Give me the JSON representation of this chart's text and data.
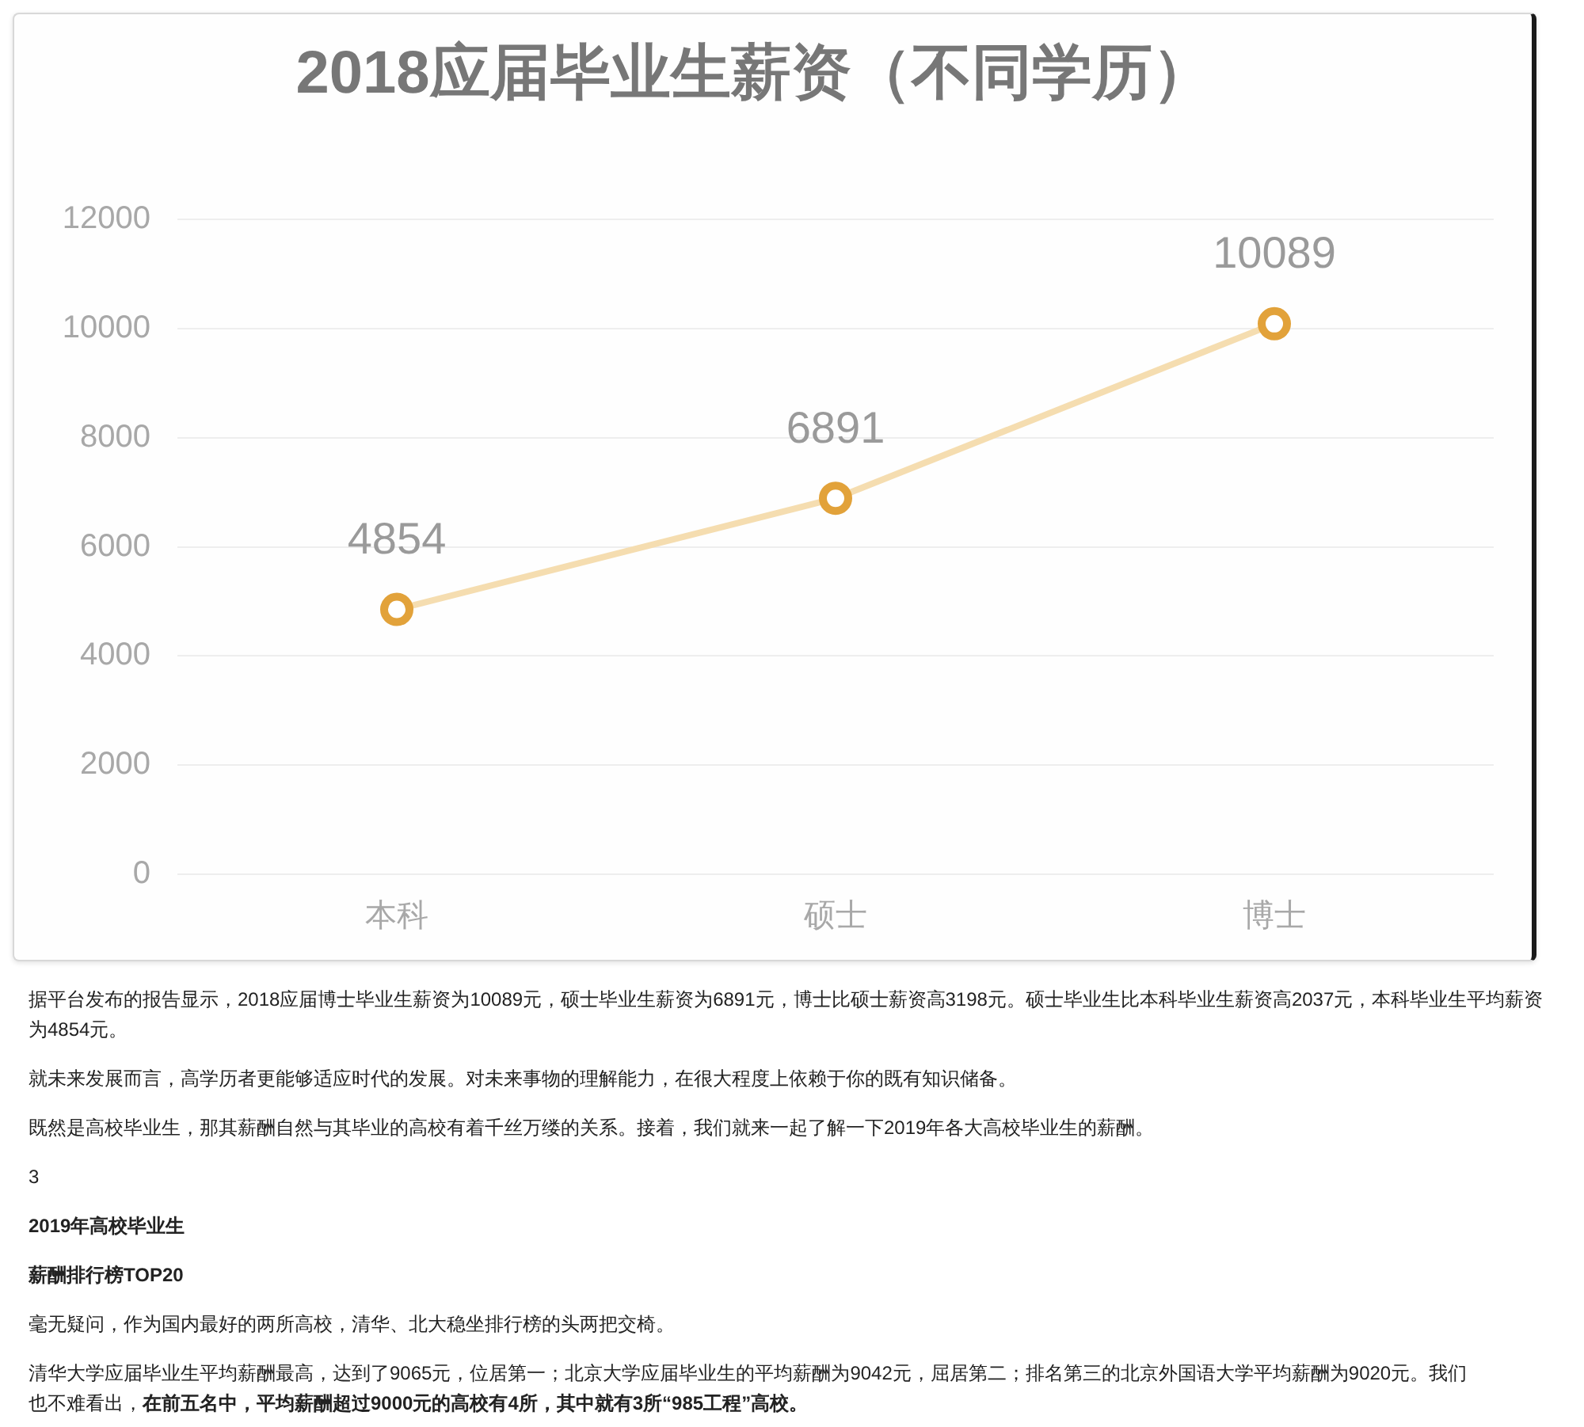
{
  "chart_data": {
    "type": "line",
    "title": "2018应届毕业生薪资（不同学历）",
    "categories": [
      "本科",
      "硕士",
      "博士"
    ],
    "series": [
      {
        "color": "#f5ddb0",
        "colors": [
          "#e2a23a",
          "#e2a23a",
          "#e2a23a"
        ],
        "values": [
          4854,
          6891,
          10089
        ]
      }
    ],
    "ylim": [
      0,
      12000
    ],
    "yticks": [
      0,
      2000,
      4000,
      6000,
      8000,
      10000,
      12000
    ],
    "grid": "y",
    "marker": "circle",
    "data_labels": true,
    "annotations": [
      "据平台发布的报告显示，2018应届博士毕业生薪资为10089元，硕士毕业生薪资为6891元，博士比硕士薪资高3198元。硕士毕业生比本科毕业生薪资高2037元，本科毕业生平均薪资为4854元。",
      "就未来发展而言，高学历者更能够适应时代的发展。对未来事物的理解能力，在很大程度上依赖于你的既有知识储备。",
      "既然是高校毕业生，那其薪酬自然与其毕业的高校有着千丝万缕的关系。接着，我们就来一起了解一下2019年各大高校毕业生的薪酬。",
      "3",
      "2019年高校毕业生",
      "薪酬排行榜TOP20",
      "毫无疑问，作为国内最好的两所高校，清华、北大稳坐排行榜的头两把交椅。",
      "清华大学应届毕业生平均薪酬最高，达到了9065元，位居第一；北京大学应届毕业生的平均薪酬为9042元，屈居第二；排名第三的北京外国语大学平均薪酬为9020元。我们",
      "也不难看出，",
      "在前五名中，平均薪酬超过9000元的高校有4所，其中就有3所“985工程”高校。"
    ]
  }
}
